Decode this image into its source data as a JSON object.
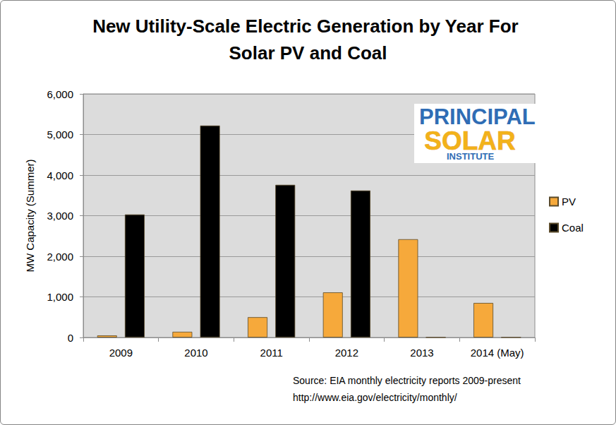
{
  "chart_data": {
    "type": "bar",
    "title": "New Utility-Scale Electric Generation by Year For Solar PV and Coal",
    "y_label": "MW Capacity (Summer)",
    "categories": [
      "2009",
      "2010",
      "2011",
      "2012",
      "2013",
      "2014 (May)"
    ],
    "series": [
      {
        "name": "PV",
        "color": "#F6A93B",
        "values": [
          50,
          140,
          500,
          1110,
          2420,
          850
        ]
      },
      {
        "name": "Coal",
        "color": "#000000",
        "values": [
          3030,
          5220,
          3760,
          3620,
          0,
          0
        ]
      }
    ],
    "ylim": [
      0,
      6000
    ],
    "yticks": [
      0,
      1000,
      2000,
      3000,
      4000,
      5000,
      6000
    ],
    "grid": true,
    "legend": "right",
    "annotations": [
      "Source: EIA monthly electricity reports 2009-present",
      "http://www.eia.gov/electricity/monthly/"
    ],
    "logo_text": [
      "PRINCIPAL",
      "SOLAR",
      "INSTITUTE"
    ]
  }
}
